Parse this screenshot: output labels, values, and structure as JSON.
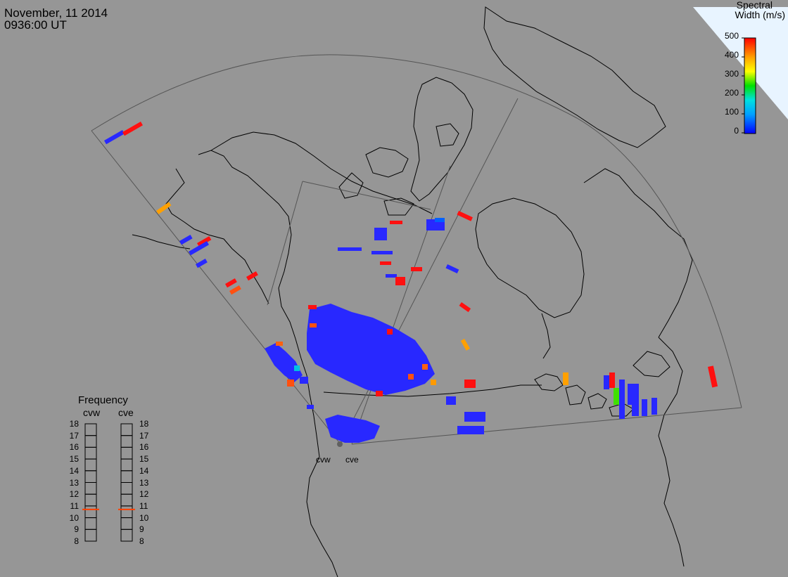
{
  "header": {
    "date": "November, 11 2014",
    "time": "0936:00 UT"
  },
  "colorbar": {
    "title_line1": "Spectral",
    "title_line2": "Width (m/s)",
    "ticks": [
      "500",
      "400",
      "300",
      "200",
      "100",
      "0"
    ],
    "range": [
      0,
      500
    ],
    "stops": [
      "#0000ff",
      "#00a0ff",
      "#00e0e0",
      "#00e000",
      "#ffff00",
      "#ffa000",
      "#ff0000"
    ]
  },
  "frequency_panel": {
    "title": "Frequency",
    "radars": [
      {
        "name": "cvw",
        "freq_mhz": 10.7
      },
      {
        "name": "cve",
        "freq_mhz": 10.7
      }
    ],
    "ticks": [
      "18",
      "17",
      "16",
      "15",
      "14",
      "13",
      "12",
      "11",
      "10",
      "9",
      "8"
    ],
    "range": [
      8,
      18
    ],
    "indicator_color": "#ff4000"
  },
  "sites": [
    {
      "name": "cvw"
    },
    {
      "name": "cve"
    }
  ],
  "colors": {
    "background": "#969696",
    "land_outline": "#000000",
    "ocean_corner": "#e8f4ff",
    "low_width": "#2828ff",
    "high_width": "#ff1010",
    "mid_width": "#ff9a00"
  }
}
